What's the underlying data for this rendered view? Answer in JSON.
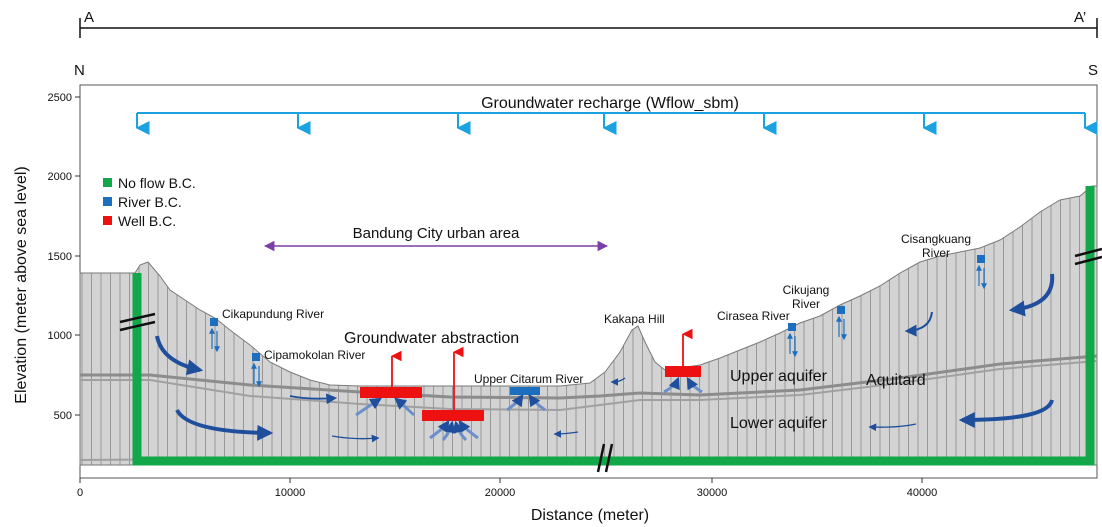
{
  "section": {
    "left": "A",
    "right": "A’",
    "north": "N",
    "south": "S"
  },
  "axes": {
    "xlabel": "Distance (meter)",
    "ylabel": "Elevation (meter above sea level)",
    "xticks": [
      "0",
      "10000",
      "20000",
      "30000",
      "40000"
    ],
    "yticks": [
      "500",
      "1000",
      "1500",
      "2000",
      "2500"
    ]
  },
  "legend": [
    {
      "label": "No flow B.C.",
      "color": "#12a84a"
    },
    {
      "label": "River B.C.",
      "color": "#1c6fbf"
    },
    {
      "label": "Well B.C.",
      "color": "#ee1111"
    }
  ],
  "labels": {
    "recharge": "Groundwater recharge (Wflow_sbm)",
    "urban": "Bandung City urban area",
    "abstraction": "Groundwater abstraction",
    "upper_aquifer": "Upper aquifer",
    "lower_aquifer": "Lower aquifer",
    "aquitard": "Aquitard",
    "kakapa_hill": "Kakapa Hill",
    "upper_citarum": "Upper Citarum River",
    "cikapundung": "Cikapundung River",
    "cipamokolan": "Cipamokolan River",
    "cirasea": "Cirasea River",
    "cikujang_1": "Cikujang",
    "cikujang_2": "River",
    "cisangkuang_1": "Cisangkuang",
    "cisangkuang_2": "River"
  },
  "colors": {
    "recharge": "#1aa3e0",
    "urban": "#7b3fa8",
    "flow": "#1f4f9c",
    "terrain_fill": "#d3d3d3",
    "grid_line": "#8a8a8a"
  }
}
